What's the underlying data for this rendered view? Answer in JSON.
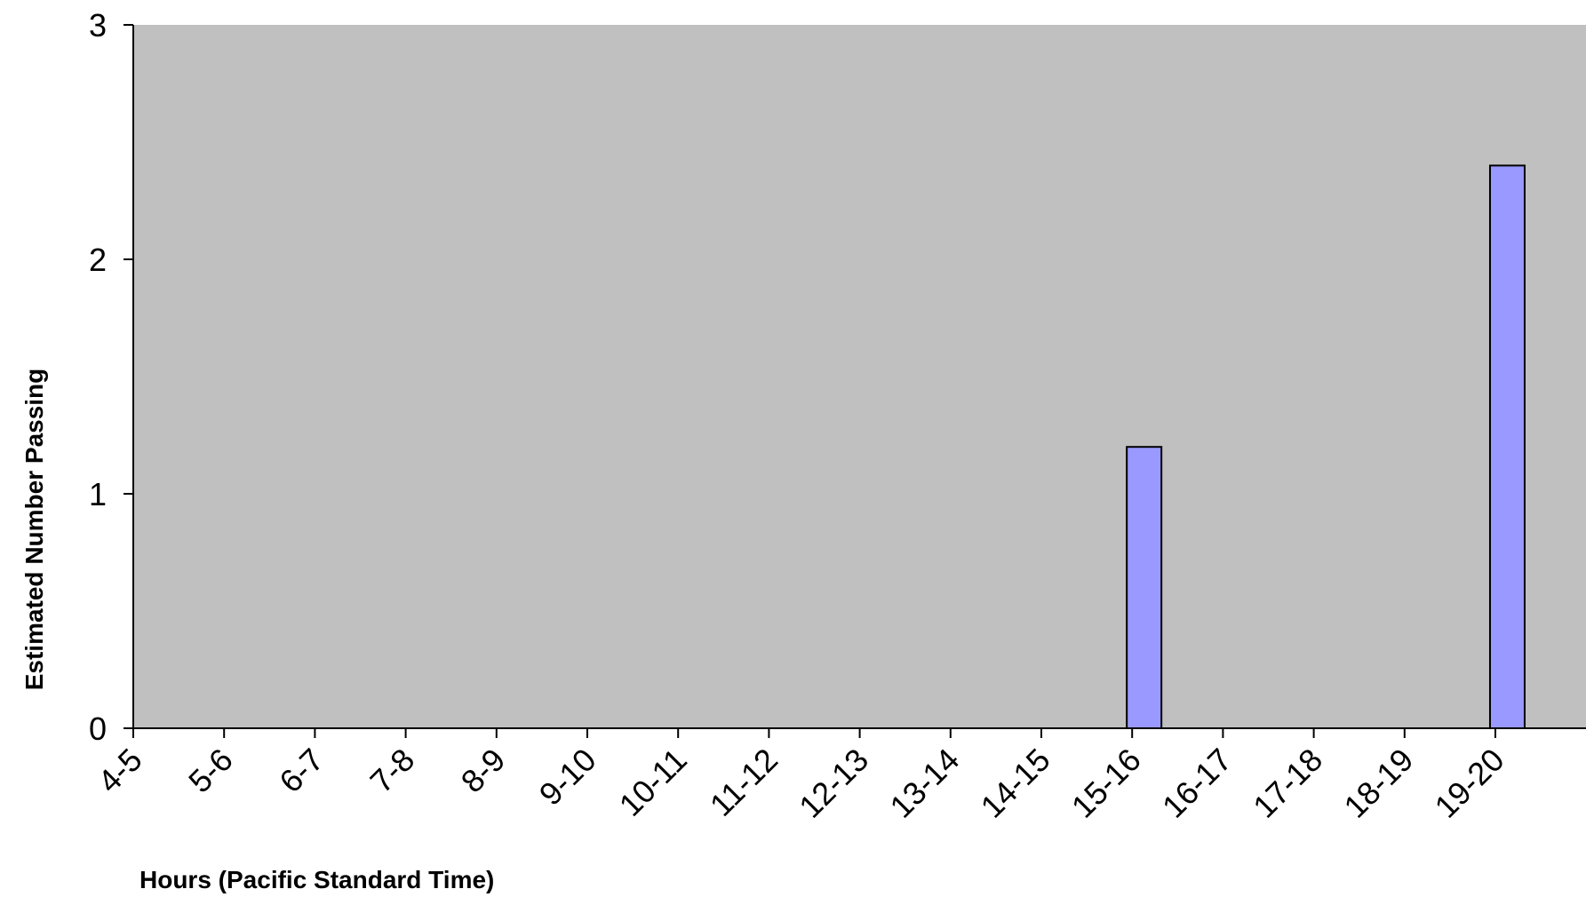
{
  "chart_data": {
    "type": "bar",
    "title": "",
    "xlabel": "Hours (Pacific Standard Time)",
    "ylabel": "Estimated Number Passing",
    "categories": [
      "4-5",
      "5-6",
      "6-7",
      "7-8",
      "8-9",
      "9-10",
      "10-11",
      "11-12",
      "12-13",
      "13-14",
      "14-15",
      "15-16",
      "16-17",
      "17-18",
      "18-19",
      "19-20"
    ],
    "values": [
      0,
      0,
      0,
      0,
      0,
      0,
      0,
      0,
      0,
      0,
      0,
      1.2,
      0,
      0,
      0,
      2.4
    ],
    "ylim": [
      0,
      3
    ],
    "yticks": [
      0,
      1,
      2,
      3
    ],
    "grid": false,
    "legend": "none",
    "colors": {
      "plot_background": "#c0c0c0",
      "bar_fill": "#9999ff",
      "bar_stroke": "#000000",
      "axis": "#000000"
    }
  }
}
